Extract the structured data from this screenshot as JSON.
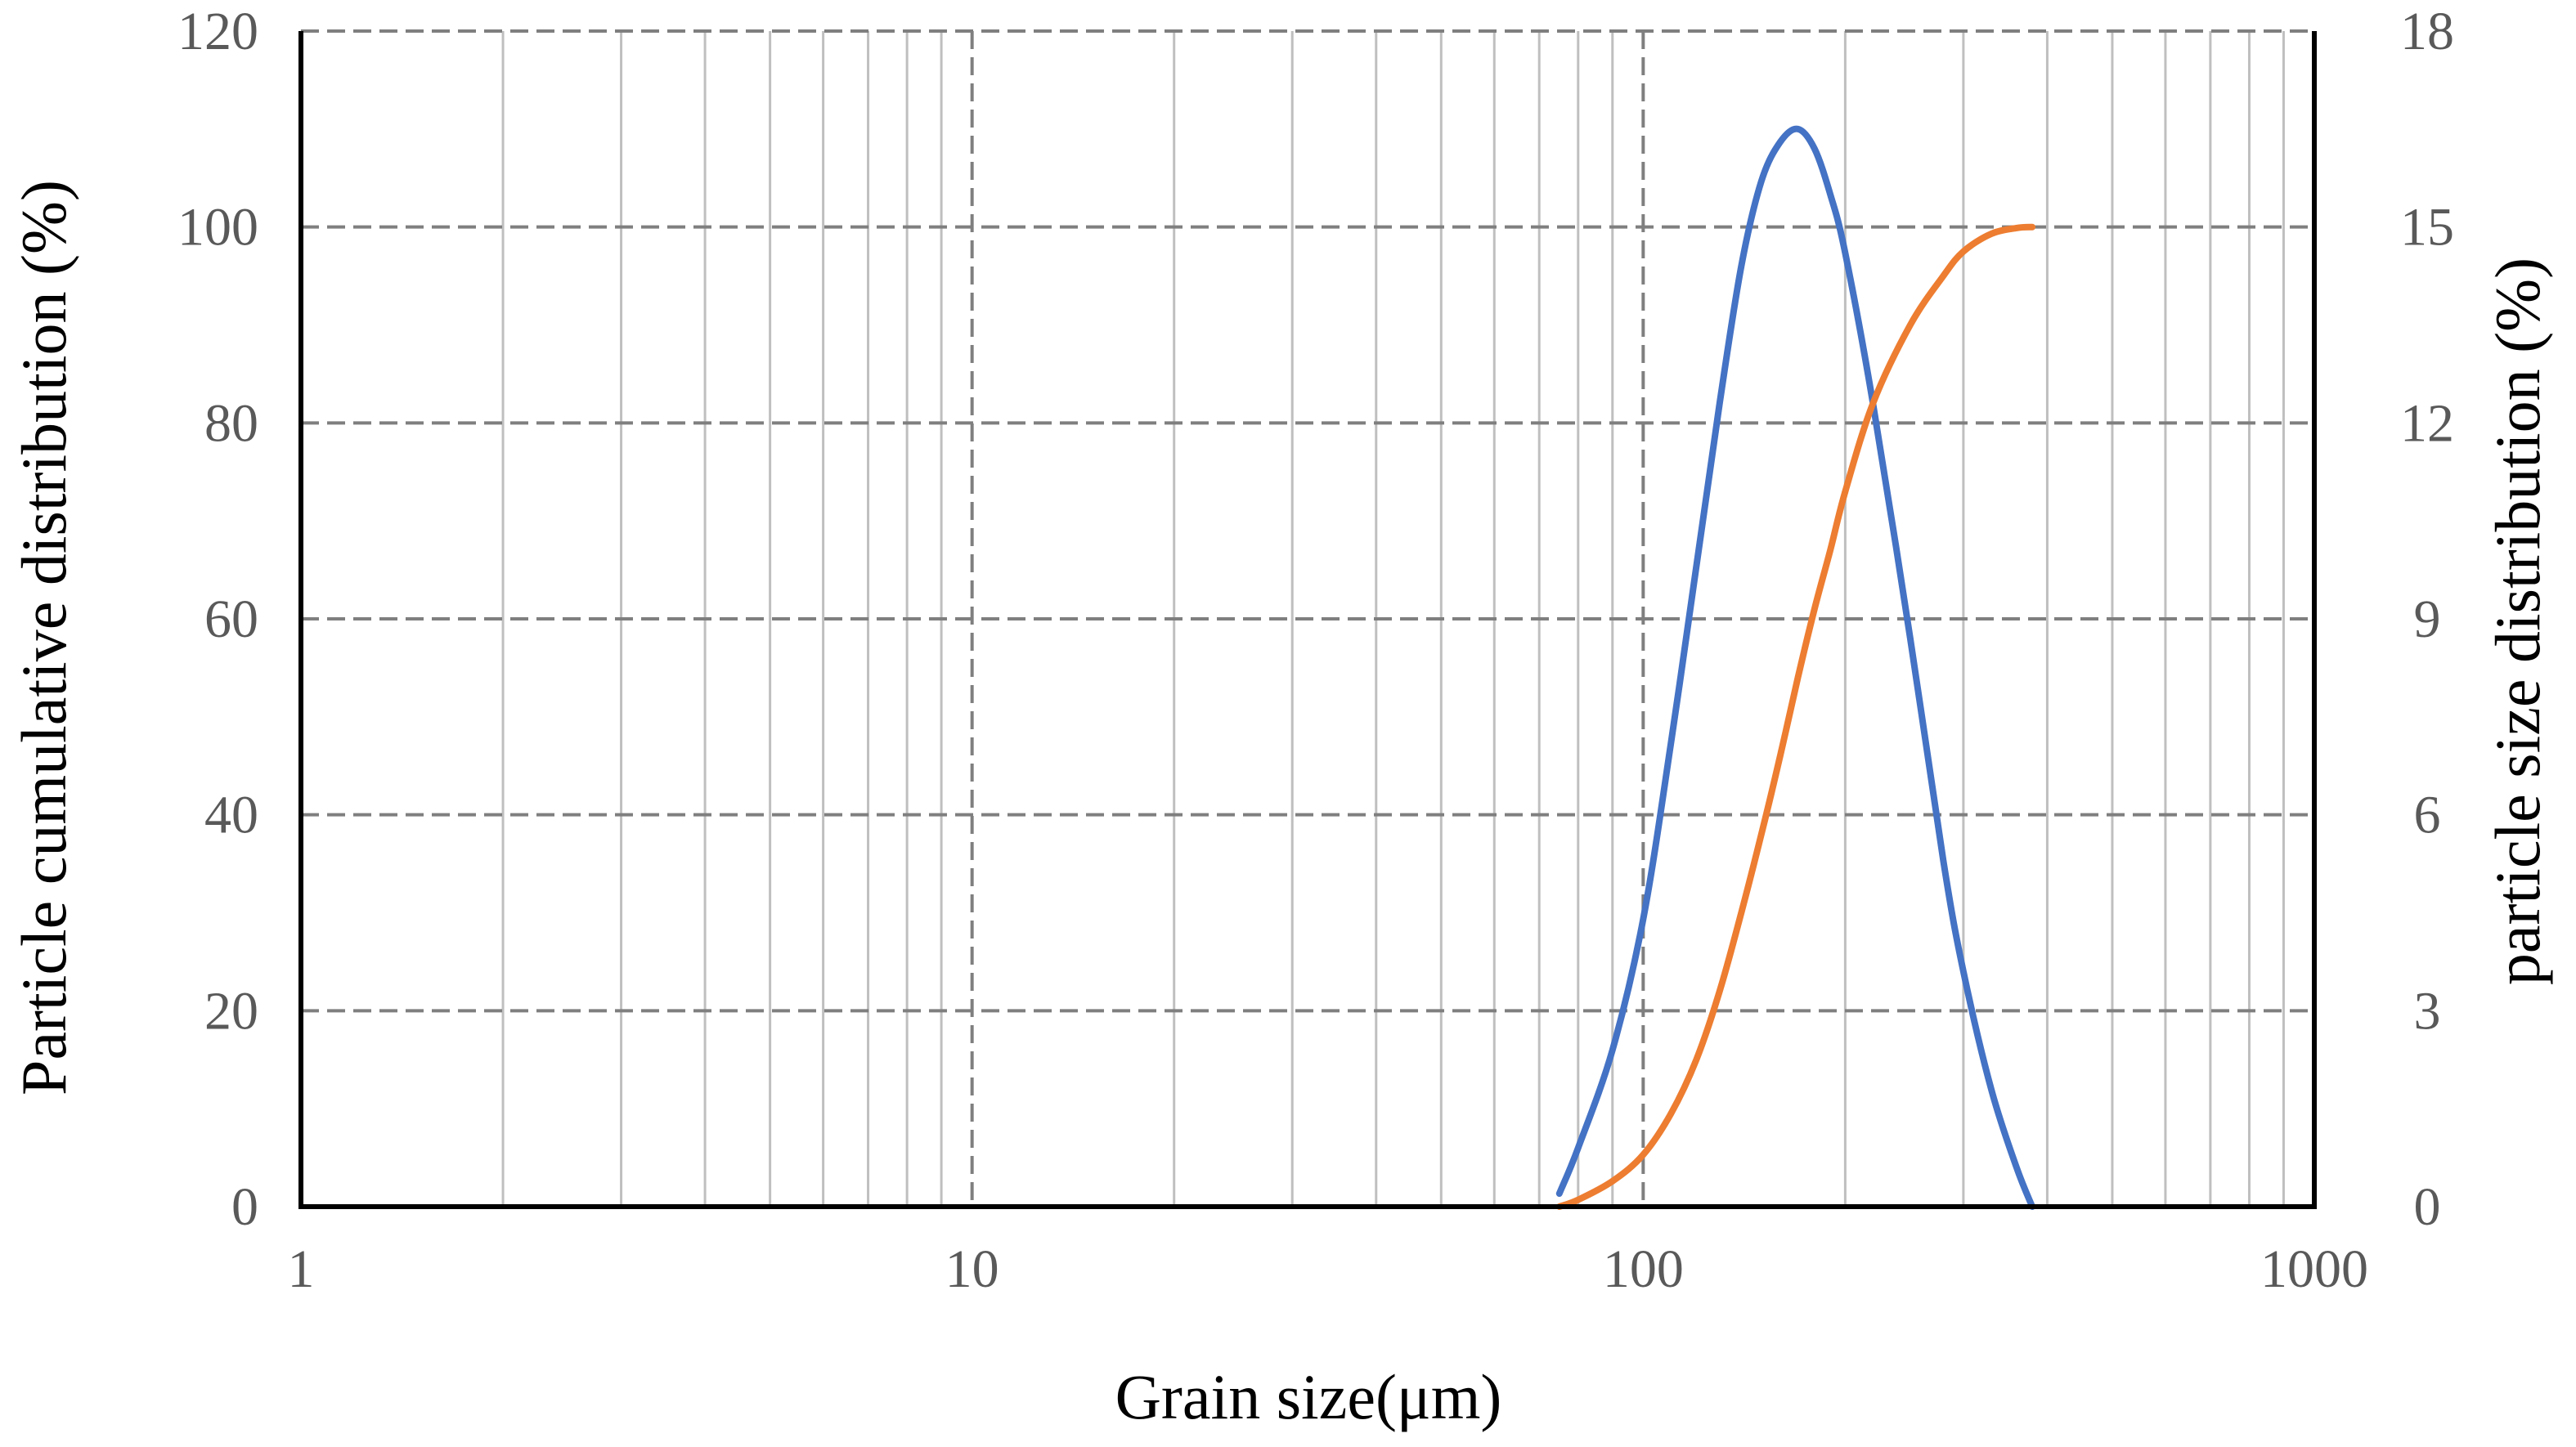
{
  "chart_data": {
    "type": "line",
    "title": "",
    "xlabel": "Grain size(μm)",
    "ylabel_left": "Particle cumulative distribution (%)",
    "ylabel_right": "particle size distribution (%)",
    "x_scale": "log",
    "xlim": [
      1,
      1000
    ],
    "x_ticks": [
      "1",
      "10",
      "100",
      "1000"
    ],
    "ylim_left": [
      0,
      120
    ],
    "y_ticks_left": [
      "0",
      "20",
      "40",
      "60",
      "80",
      "100",
      "120"
    ],
    "ylim_right": [
      0,
      18
    ],
    "y_ticks_right": [
      "0",
      "3",
      "6",
      "9",
      "12",
      "15",
      "18"
    ],
    "grid": true,
    "series": [
      {
        "axis": "right",
        "color": "#4472C4",
        "x": [
          75,
          80,
          90,
          100,
          110,
          120,
          130,
          140,
          150,
          160,
          170,
          180,
          190,
          200,
          220,
          250,
          280,
          300,
          330,
          360,
          380
        ],
        "values": [
          0.2,
          0.9,
          2.4,
          4.4,
          7.1,
          9.8,
          12.3,
          14.4,
          15.7,
          16.3,
          16.5,
          16.2,
          15.5,
          14.6,
          12.3,
          8.7,
          5.3,
          3.6,
          1.8,
          0.6,
          0.0
        ]
      },
      {
        "axis": "left",
        "color": "#ED7D31",
        "x": [
          75,
          80,
          90,
          100,
          110,
          120,
          130,
          140,
          150,
          160,
          170,
          180,
          190,
          200,
          220,
          250,
          280,
          300,
          330,
          360,
          380
        ],
        "values": [
          0,
          0.7,
          2.6,
          5.3,
          9.5,
          15,
          22,
          30,
          38,
          46,
          54,
          61,
          67,
          73,
          82,
          90,
          95,
          97.5,
          99.3,
          99.9,
          100
        ]
      }
    ]
  }
}
